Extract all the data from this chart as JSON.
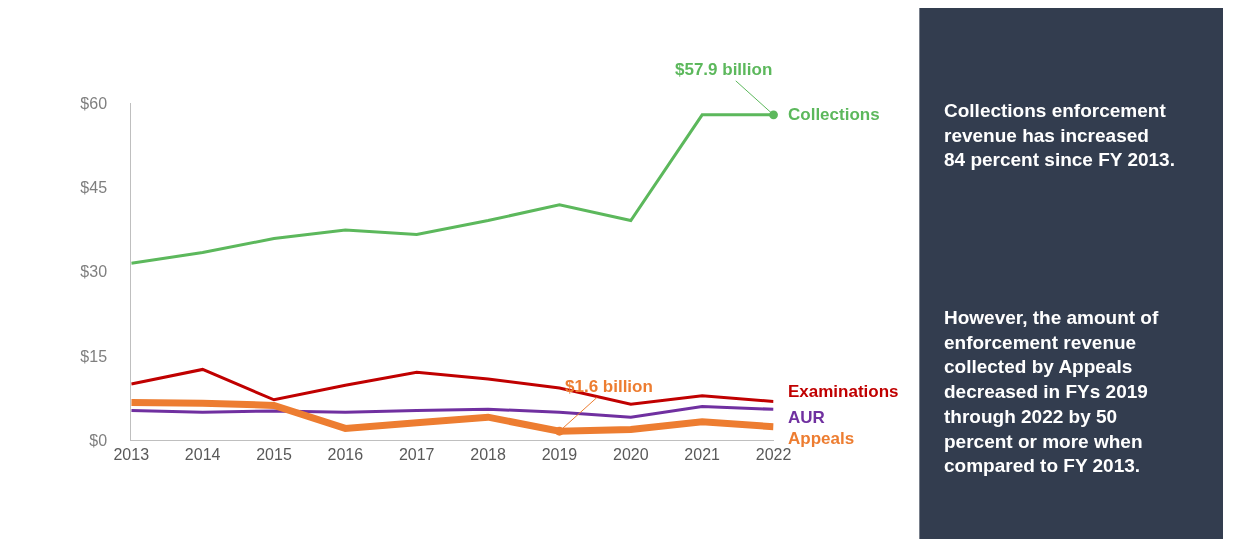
{
  "chart_data": {
    "type": "line",
    "x": [
      2013,
      2014,
      2015,
      2016,
      2017,
      2018,
      2019,
      2020,
      2021,
      2022
    ],
    "series": [
      {
        "name": "Collections",
        "color": "#5cb85c",
        "values": [
          31.5,
          33.4,
          35.9,
          37.4,
          36.6,
          39.1,
          41.9,
          39.1,
          57.9,
          57.9
        ]
      },
      {
        "name": "Examinations",
        "color": "#c00000",
        "values": [
          10.0,
          12.6,
          7.2,
          9.8,
          12.1,
          10.9,
          9.3,
          6.4,
          7.9,
          6.9
        ]
      },
      {
        "name": "AUR",
        "color": "#7030a0",
        "values": [
          5.3,
          5.0,
          5.2,
          5.0,
          5.3,
          5.5,
          5.0,
          4.1,
          6.0,
          5.5
        ]
      },
      {
        "name": "Appeals",
        "color": "#ed7d31",
        "values": [
          6.7,
          6.6,
          6.2,
          2.1,
          3.1,
          4.1,
          1.6,
          1.9,
          3.3,
          2.4
        ]
      }
    ],
    "xlim": [
      2013,
      2022
    ],
    "xticks": [
      2013,
      2014,
      2015,
      2016,
      2017,
      2018,
      2019,
      2020,
      2021,
      2022
    ],
    "ylim": [
      0,
      60
    ],
    "yticks": [
      {
        "value": 0,
        "label": "$0"
      },
      {
        "value": 15,
        "label": "$15"
      },
      {
        "value": 30,
        "label": "$30"
      },
      {
        "value": 45,
        "label": "$45"
      },
      {
        "value": 60,
        "label": "$60"
      }
    ],
    "legend": false,
    "marker": "none",
    "line_style": "solid",
    "annotations": [
      {
        "text": "$57.9 billion",
        "x": 2022,
        "y": 57.9
      },
      {
        "text": "$1.6 billion",
        "x": 2019,
        "y": 1.6
      },
      "Collections enforcement\nrevenue has increased\n84 percent since FY 2013.",
      "However, the amount of\nenforcement revenue\ncollected by Appeals\ndecreased in FYs 2019\nthrough 2022 by 50\npercent or more when\ncompared to FY 2013."
    ]
  }
}
